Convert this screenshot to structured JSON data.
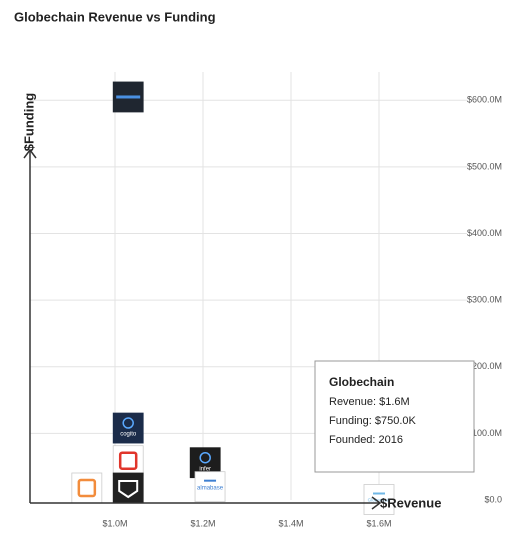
{
  "chart_data": {
    "type": "scatter",
    "title": "Globechain Revenue vs Funding",
    "x_label": "$Revenue",
    "y_label": "$Funding",
    "x": [
      1030000,
      1030000,
      1030000,
      1030000,
      936000,
      1205000,
      1216000,
      1600000
    ],
    "values": [
      605000000,
      108000000,
      59000000,
      18000000,
      18000000,
      56000000,
      20000000,
      750000
    ],
    "point_labels": [
      null,
      "cogito",
      null,
      null,
      null,
      "infer",
      "almabase",
      "Globechain"
    ],
    "colors": [
      "#1f2630",
      "#1b2c4a",
      "#e0352b",
      "#222222",
      "#f28c3c",
      "#1d1d1d",
      "#3d7fd1",
      "#6fb7e6"
    ],
    "xlim": [
      800000,
      1800000
    ],
    "ylim": [
      0,
      650000000
    ],
    "xticks": [
      {
        "value": 1000000,
        "label": "$1.0M"
      },
      {
        "value": 1200000,
        "label": "$1.2M"
      },
      {
        "value": 1400000,
        "label": "$1.4M"
      },
      {
        "value": 1600000,
        "label": "$1.6M"
      }
    ],
    "yticks": [
      {
        "value": 0,
        "label": "$0.0"
      },
      {
        "value": 100000000,
        "label": "$100.0M"
      },
      {
        "value": 200000000,
        "label": "$200.0M"
      },
      {
        "value": 300000000,
        "label": "$300.0M"
      },
      {
        "value": 400000000,
        "label": "$400.0M"
      },
      {
        "value": 500000000,
        "label": "$500.0M"
      },
      {
        "value": 600000000,
        "label": "$600.0M"
      }
    ],
    "grid": true,
    "tooltip": {
      "title": "Globechain",
      "lines": [
        "Revenue: $1.6M",
        "Funding: $750.0K",
        "Founded: 2016"
      ]
    }
  }
}
